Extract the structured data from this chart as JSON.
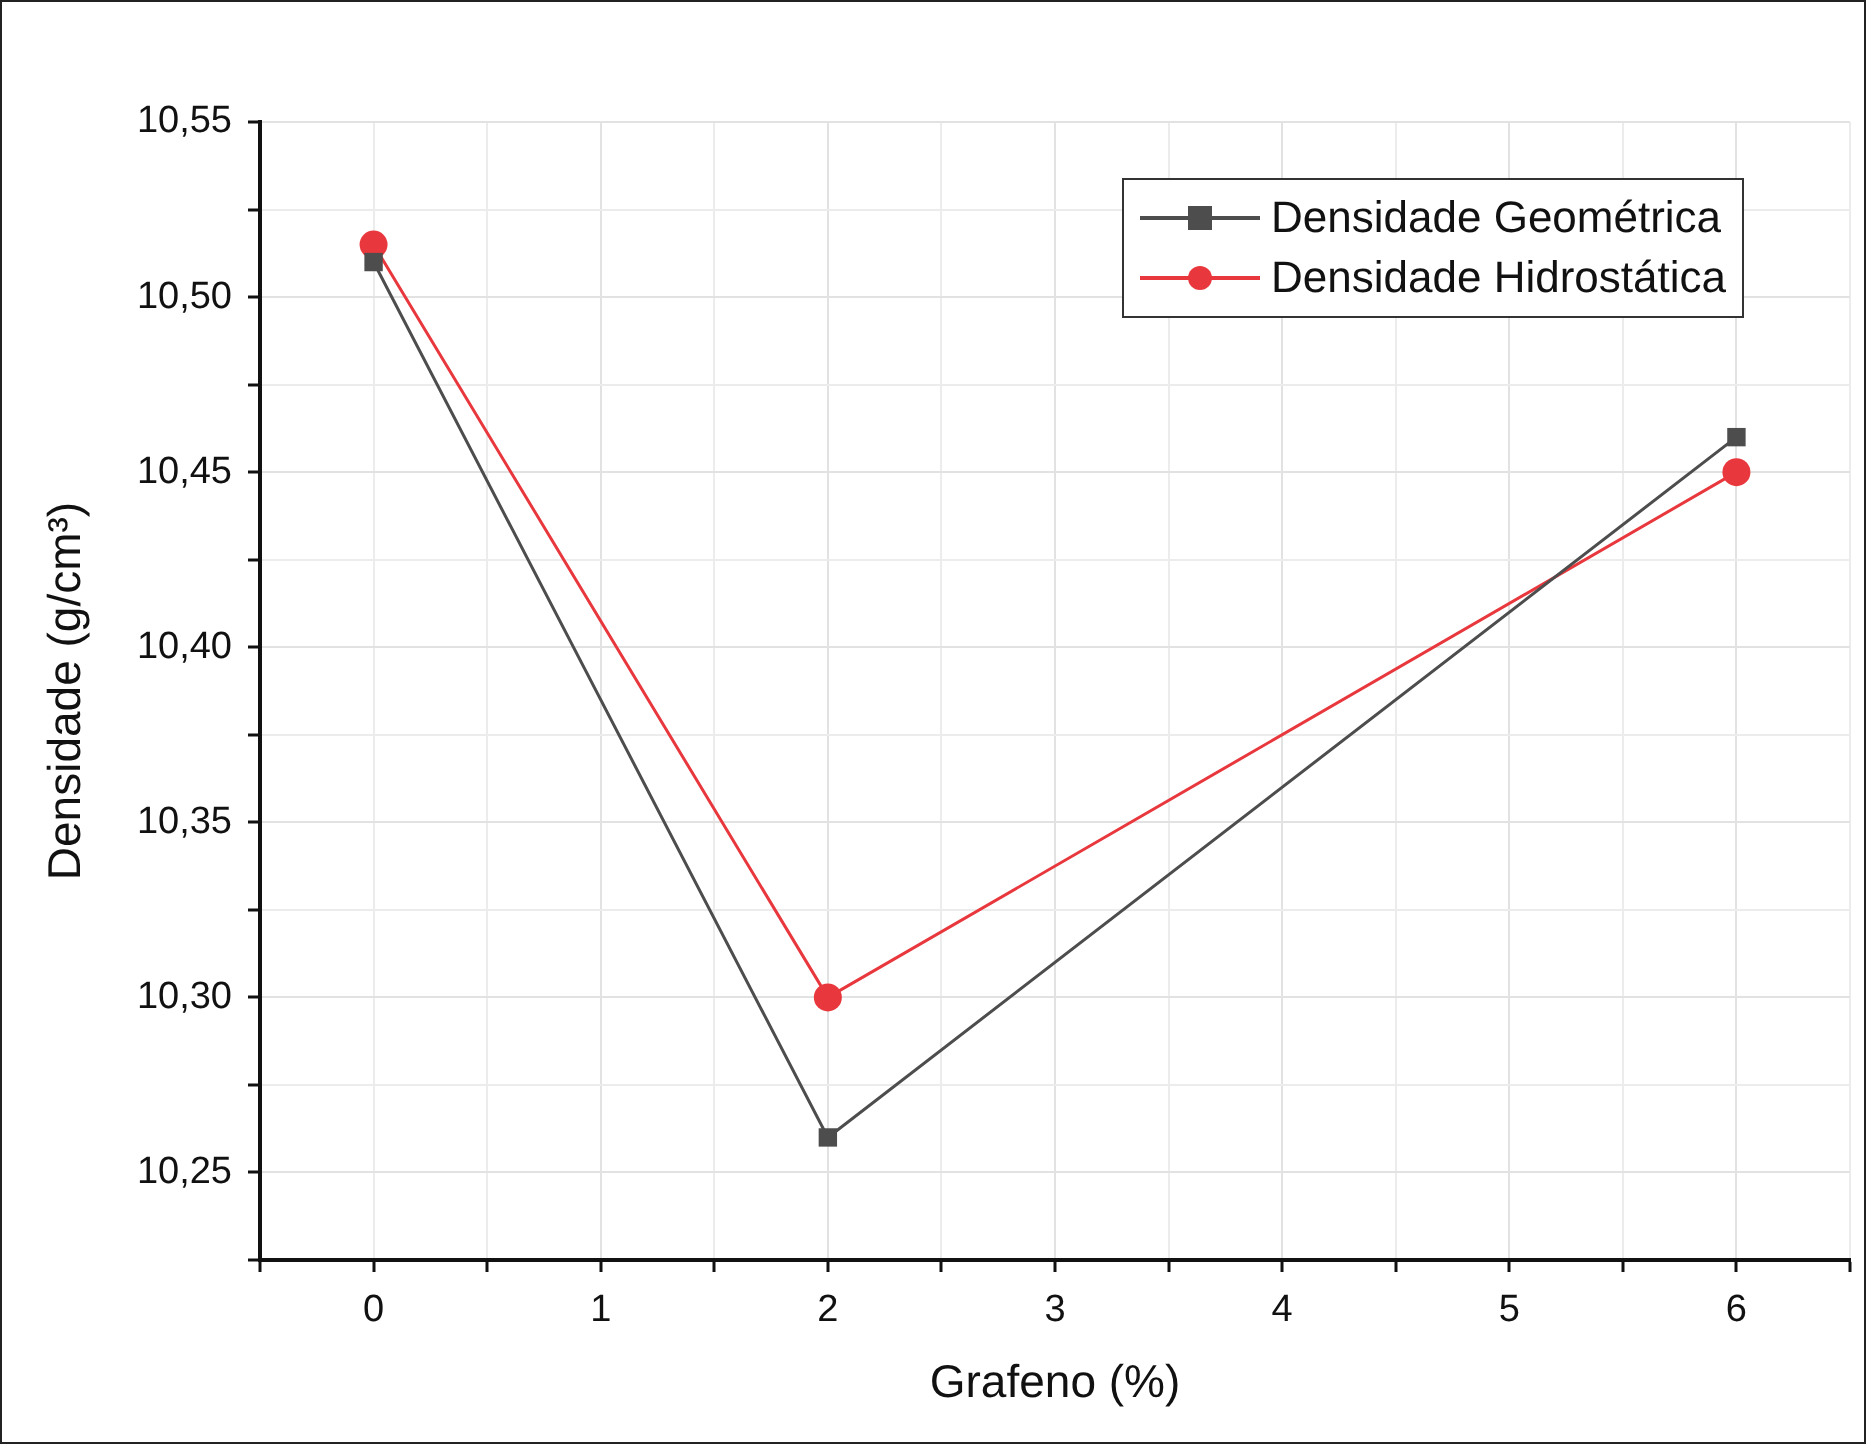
{
  "chart_data": {
    "type": "line",
    "xlabel": "Grafeno (%)",
    "ylabel": "Densidade (g/cm³)",
    "x": [
      0,
      2,
      6
    ],
    "series": [
      {
        "name": "Densidade Geométrica",
        "color": "#4d4d4d",
        "marker": "square",
        "values": [
          10.51,
          10.26,
          10.46
        ]
      },
      {
        "name": "Densidade Hidrostática",
        "color": "#e8383d",
        "marker": "circle",
        "values": [
          10.515,
          10.3,
          10.45
        ]
      }
    ],
    "xlim": [
      -0.5,
      6.5
    ],
    "xticks": [
      {
        "value": -0.5,
        "label": null
      },
      0,
      {
        "value": 0.5,
        "label": null
      },
      1,
      {
        "value": 1.5,
        "label": null
      },
      2,
      {
        "value": 2.5,
        "label": null
      },
      3,
      {
        "value": 3.5,
        "label": null
      },
      4,
      {
        "value": 4.5,
        "label": null
      },
      5,
      {
        "value": 5.5,
        "label": null
      },
      6,
      {
        "value": 6.5,
        "label": null
      }
    ],
    "ylim": [
      10.225,
      10.55
    ],
    "yticks": [
      {
        "value": 10.225,
        "label": null
      },
      {
        "value": 10.25,
        "label": "10,25"
      },
      {
        "value": 10.275,
        "label": null
      },
      {
        "value": 10.3,
        "label": "10,30"
      },
      {
        "value": 10.325,
        "label": null
      },
      {
        "value": 10.35,
        "label": "10,35"
      },
      {
        "value": 10.375,
        "label": null
      },
      {
        "value": 10.4,
        "label": "10,40"
      },
      {
        "value": 10.425,
        "label": null
      },
      {
        "value": 10.45,
        "label": "10,45"
      },
      {
        "value": 10.475,
        "label": null
      },
      {
        "value": 10.5,
        "label": "10,50"
      },
      {
        "value": 10.525,
        "label": null
      },
      {
        "value": 10.55,
        "label": "10,55"
      }
    ],
    "grid": true,
    "legend": "top right",
    "line_style": "solid"
  }
}
